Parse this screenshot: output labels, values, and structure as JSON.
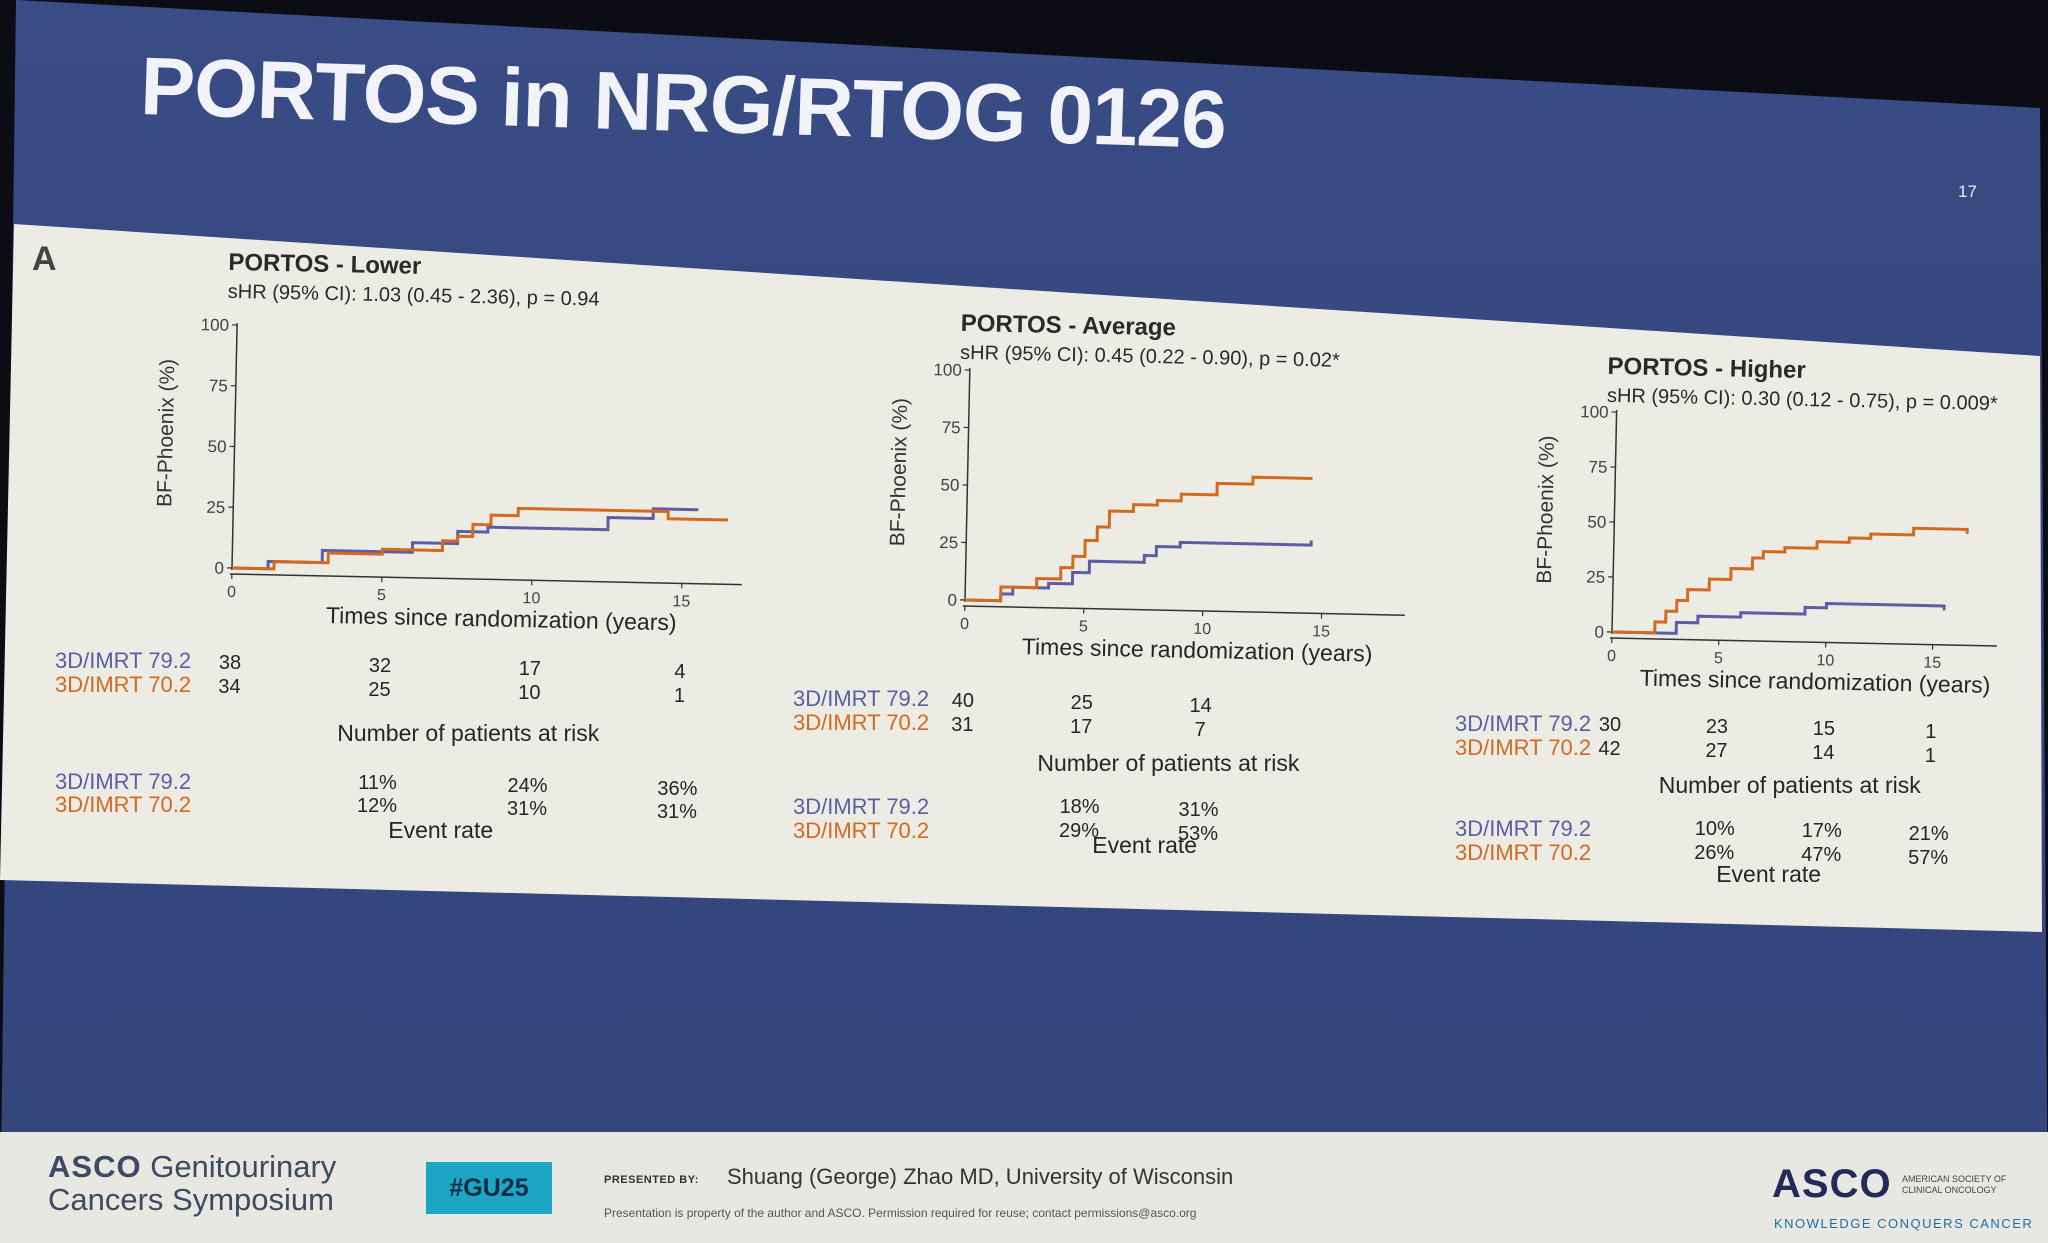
{
  "slide": {
    "title": "PORTOS in NRG/RTOG 0126",
    "slide_number": "17",
    "panel_label": "A"
  },
  "colors": {
    "arm_79_2": "#5b5ea6",
    "arm_70_2": "#d26a1f",
    "panel_bg": "#ecebe4",
    "slide_bg": "#35477e"
  },
  "chart_data": [
    {
      "type": "line",
      "title": "PORTOS - Lower",
      "subtitle": "sHR (95% CI): 1.03 (0.45 - 2.36), p = 0.94",
      "xlabel": "Times since randomization (years)",
      "ylabel": "BF-Phoenix (%)",
      "xlim": [
        0,
        17
      ],
      "ylim": [
        0,
        100
      ],
      "xticks": [
        0,
        5,
        10,
        15
      ],
      "yticks": [
        0,
        25,
        50,
        75,
        100
      ],
      "series": [
        {
          "name": "3D/IMRT 79.2",
          "color": "#5b5ea6",
          "x": [
            0,
            1,
            1.2,
            2.8,
            3,
            5.5,
            6,
            7,
            7.5,
            8,
            8.5,
            12,
            12.5,
            14,
            15.5
          ],
          "y": [
            0,
            0,
            3,
            3,
            8,
            8,
            12,
            12,
            17,
            17,
            19,
            19,
            24,
            28,
            28
          ]
        },
        {
          "name": "3D/IMRT 70.2",
          "color": "#d26a1f",
          "x": [
            0,
            1,
            1.4,
            3,
            3.2,
            4.5,
            5,
            6,
            7,
            7.5,
            8,
            8.6,
            9.5,
            13,
            14.5,
            16.5
          ],
          "y": [
            0,
            0,
            3,
            3,
            7,
            7,
            9,
            9,
            13,
            15,
            20,
            24,
            27,
            27,
            24,
            24
          ]
        }
      ],
      "at_risk": {
        "title": "Number of patients at risk",
        "x": [
          0,
          5,
          10,
          15
        ],
        "rows": [
          {
            "label": "3D/IMRT 79.2",
            "values": [
              "38",
              "32",
              "17",
              "4"
            ]
          },
          {
            "label": "3D/IMRT 70.2",
            "values": [
              "34",
              "25",
              "10",
              "1"
            ]
          }
        ]
      },
      "event_rate": {
        "title": "Event rate",
        "x": [
          5,
          10,
          15
        ],
        "rows": [
          {
            "label": "3D/IMRT 79.2",
            "values": [
              "11%",
              "24%",
              "36%"
            ]
          },
          {
            "label": "3D/IMRT 70.2",
            "values": [
              "12%",
              "31%",
              "31%"
            ]
          }
        ]
      }
    },
    {
      "type": "line",
      "title": "PORTOS - Average",
      "subtitle": "sHR (95% CI): 0.45 (0.22 - 0.90), p = 0.02*",
      "xlabel": "Times since randomization (years)",
      "ylabel": "BF-Phoenix (%)",
      "xlim": [
        0,
        18.5
      ],
      "ylim": [
        0,
        100
      ],
      "xticks": [
        0,
        5,
        10,
        15
      ],
      "yticks": [
        0,
        25,
        50,
        75,
        100
      ],
      "series": [
        {
          "name": "3D/IMRT 79.2",
          "color": "#5b5ea6",
          "x": [
            0,
            1,
            1.5,
            2,
            3,
            3.5,
            4.5,
            5.2,
            6.8,
            7.5,
            8,
            9,
            13.5,
            14.5
          ],
          "y": [
            0,
            0,
            3,
            6,
            6,
            8,
            13,
            18,
            18,
            21,
            25,
            27,
            27,
            29
          ]
        },
        {
          "name": "3D/IMRT 70.2",
          "color": "#d26a1f",
          "x": [
            0,
            1,
            1.5,
            2.5,
            3,
            4,
            4.5,
            5,
            5.5,
            6,
            7,
            8,
            9,
            10.5,
            12,
            14.5
          ],
          "y": [
            0,
            0,
            6,
            6,
            10,
            15,
            20,
            27,
            33,
            40,
            43,
            45,
            48,
            53,
            56,
            56
          ]
        }
      ],
      "at_risk": {
        "title": "Number of patients at risk",
        "x": [
          0,
          5,
          10
        ],
        "rows": [
          {
            "label": "3D/IMRT 79.2",
            "values": [
              "40",
              "25",
              "14"
            ]
          },
          {
            "label": "3D/IMRT 70.2",
            "values": [
              "31",
              "17",
              "7"
            ]
          }
        ]
      },
      "event_rate": {
        "title": "Event rate",
        "x": [
          5,
          10
        ],
        "rows": [
          {
            "label": "3D/IMRT 79.2",
            "values": [
              "18%",
              "31%"
            ]
          },
          {
            "label": "3D/IMRT 70.2",
            "values": [
              "29%",
              "53%"
            ]
          }
        ]
      }
    },
    {
      "type": "line",
      "title": "PORTOS - Higher",
      "subtitle": "sHR (95% CI): 0.30 (0.12 - 0.75), p = 0.009*",
      "xlabel": "Times since randomization (years)",
      "ylabel": "BF-Phoenix (%)",
      "xlim": [
        0,
        18
      ],
      "ylim": [
        0,
        100
      ],
      "xticks": [
        0,
        5,
        10,
        15
      ],
      "yticks": [
        0,
        25,
        50,
        75,
        100
      ],
      "series": [
        {
          "name": "3D/IMRT 79.2",
          "color": "#5b5ea6",
          "x": [
            0,
            2.5,
            3,
            4,
            6,
            9,
            10,
            12,
            15.5
          ],
          "y": [
            0,
            0,
            5,
            8,
            10,
            13,
            15,
            15,
            13
          ]
        },
        {
          "name": "3D/IMRT 70.2",
          "color": "#d26a1f",
          "x": [
            0,
            1.8,
            2,
            2.5,
            3,
            3.5,
            4.5,
            5.5,
            6.5,
            7,
            8,
            9.5,
            11,
            12,
            14,
            16.5
          ],
          "y": [
            0,
            0,
            5,
            10,
            15,
            20,
            25,
            30,
            35,
            38,
            40,
            43,
            45,
            47,
            50,
            48
          ]
        }
      ],
      "at_risk": {
        "title": "Number of patients at risk",
        "x": [
          0,
          5,
          10,
          15
        ],
        "rows": [
          {
            "label": "3D/IMRT 79.2",
            "values": [
              "30",
              "23",
              "15",
              "1"
            ]
          },
          {
            "label": "3D/IMRT 70.2",
            "values": [
              "42",
              "27",
              "14",
              "1"
            ]
          }
        ]
      },
      "event_rate": {
        "title": "Event rate",
        "x": [
          5,
          10,
          15
        ],
        "rows": [
          {
            "label": "3D/IMRT 79.2",
            "values": [
              "10%",
              "17%",
              "21%"
            ]
          },
          {
            "label": "3D/IMRT 70.2",
            "values": [
              "26%",
              "47%",
              "57%"
            ]
          }
        ]
      }
    }
  ],
  "footer": {
    "brand_line1_bold": "ASCO",
    "brand_line1": "Genitourinary",
    "brand_line2": "Cancers Symposium",
    "hashtag": "#GU25",
    "presented_by": "PRESENTED BY:",
    "presenter": "Shuang (George) Zhao MD, University of Wisconsin",
    "disclaimer": "Presentation is property of the author and ASCO. Permission required for reuse; contact permissions@asco.org",
    "asco_logo": "ASCO",
    "asco_sub1": "AMERICAN SOCIETY OF",
    "asco_sub2": "CLINICAL ONCOLOGY",
    "asco_tagline": "KNOWLEDGE CONQUERS CANCER"
  }
}
